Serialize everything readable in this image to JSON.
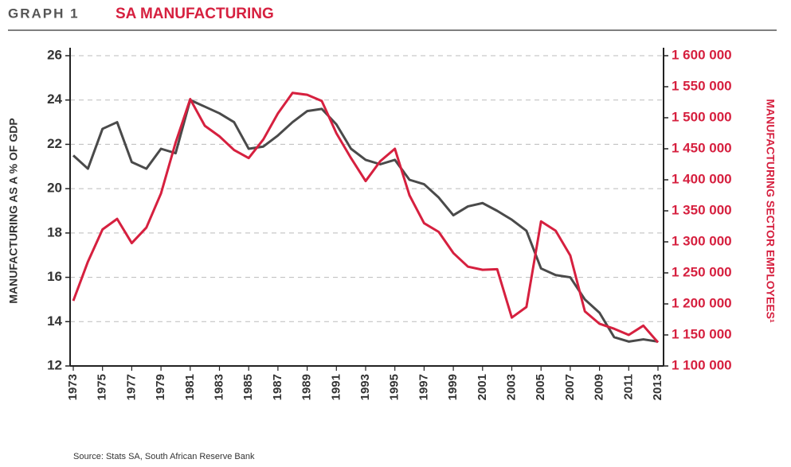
{
  "header": {
    "label": "GRAPH 1",
    "title": "SA MANUFACTURING"
  },
  "chart_data": {
    "type": "line",
    "ylabel": "MANUFACTURING AS A % OF GDP",
    "y2label": "MANUFACTURING SECTOR EMPLOYEES¹",
    "x": [
      1973,
      1974,
      1975,
      1976,
      1977,
      1978,
      1979,
      1980,
      1981,
      1982,
      1983,
      1984,
      1985,
      1986,
      1987,
      1988,
      1989,
      1990,
      1991,
      1992,
      1993,
      1994,
      1995,
      1996,
      1997,
      1998,
      1999,
      2000,
      2001,
      2002,
      2003,
      2004,
      2005,
      2006,
      2007,
      2008,
      2009,
      2010,
      2011,
      2012,
      2013
    ],
    "xlim": [
      1973,
      2013
    ],
    "xticks": [
      1973,
      1975,
      1977,
      1979,
      1981,
      1983,
      1985,
      1987,
      1989,
      1991,
      1993,
      1995,
      1997,
      1999,
      2001,
      2003,
      2005,
      2007,
      2009,
      2011,
      2013
    ],
    "ylim": [
      12,
      26
    ],
    "yticks": [
      12,
      14,
      16,
      18,
      20,
      22,
      24,
      26
    ],
    "y2lim": [
      1100000,
      1600000
    ],
    "y2ticks": [
      {
        "value": 1100000,
        "label": "1 100 000"
      },
      {
        "value": 1150000,
        "label": "1 150 000"
      },
      {
        "value": 1200000,
        "label": "1 200 000"
      },
      {
        "value": 1250000,
        "label": "1 250 000"
      },
      {
        "value": 1300000,
        "label": "1 300 000"
      },
      {
        "value": 1350000,
        "label": "1 350 000"
      },
      {
        "value": 1400000,
        "label": "1 400 000"
      },
      {
        "value": 1450000,
        "label": "1 450 000"
      },
      {
        "value": 1500000,
        "label": "1 500 000"
      },
      {
        "value": 1550000,
        "label": "1 550 000"
      },
      {
        "value": 1600000,
        "label": "1 600 000"
      }
    ],
    "grid": true,
    "series": [
      {
        "name": "Manufacturing as a % of GDP",
        "color": "#4a4a4a",
        "axis": "y",
        "values": [
          21.5,
          20.9,
          22.7,
          23.0,
          21.2,
          20.9,
          21.8,
          21.6,
          24.0,
          23.7,
          23.4,
          23.0,
          21.8,
          21.9,
          22.4,
          23.0,
          23.5,
          23.6,
          22.9,
          21.8,
          21.3,
          21.1,
          21.3,
          20.4,
          20.2,
          19.6,
          18.8,
          19.2,
          19.35,
          19.0,
          18.6,
          18.1,
          16.4,
          16.1,
          16.0,
          15.0,
          14.4,
          13.3,
          13.1,
          13.2,
          13.1
        ]
      },
      {
        "name": "Manufacturing sector employees",
        "color": "#d6203f",
        "axis": "y2",
        "values": [
          1205000,
          1268000,
          1320000,
          1337000,
          1298000,
          1323000,
          1378000,
          1460000,
          1530000,
          1487000,
          1470000,
          1448000,
          1435000,
          1465000,
          1507000,
          1540000,
          1537000,
          1527000,
          1475000,
          1435000,
          1398000,
          1430000,
          1450000,
          1375000,
          1330000,
          1316000,
          1282000,
          1260000,
          1255000,
          1256000,
          1178000,
          1195000,
          1333000,
          1318000,
          1278000,
          1188000,
          1168000,
          1160000,
          1150000,
          1165000,
          1138000
        ]
      }
    ]
  },
  "footer": {
    "source": "Source: Stats SA, South African Reserve Bank"
  }
}
